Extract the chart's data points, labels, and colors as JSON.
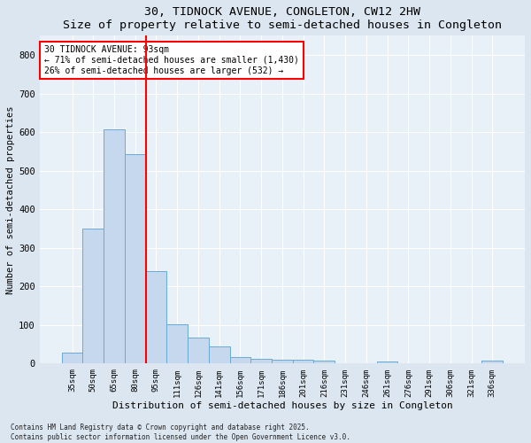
{
  "title": "30, TIDNOCK AVENUE, CONGLETON, CW12 2HW",
  "subtitle": "Size of property relative to semi-detached houses in Congleton",
  "xlabel": "Distribution of semi-detached houses by size in Congleton",
  "ylabel": "Number of semi-detached properties",
  "categories": [
    "35sqm",
    "50sqm",
    "65sqm",
    "80sqm",
    "95sqm",
    "111sqm",
    "126sqm",
    "141sqm",
    "156sqm",
    "171sqm",
    "186sqm",
    "201sqm",
    "216sqm",
    "231sqm",
    "246sqm",
    "261sqm",
    "276sqm",
    "291sqm",
    "306sqm",
    "321sqm",
    "336sqm"
  ],
  "values": [
    28,
    350,
    608,
    543,
    240,
    103,
    67,
    45,
    18,
    13,
    10,
    10,
    8,
    0,
    0,
    5,
    0,
    0,
    0,
    0,
    8
  ],
  "bar_color": "#c5d8ee",
  "bar_edge_color": "#6aaad4",
  "red_line_index": 4,
  "annotation_title": "30 TIDNOCK AVENUE: 93sqm",
  "annotation_line1": "← 71% of semi-detached houses are smaller (1,430)",
  "annotation_line2": "26% of semi-detached houses are larger (532) →",
  "ylim": [
    0,
    850
  ],
  "yticks": [
    0,
    100,
    200,
    300,
    400,
    500,
    600,
    700,
    800
  ],
  "footer_line1": "Contains HM Land Registry data © Crown copyright and database right 2025.",
  "footer_line2": "Contains public sector information licensed under the Open Government Licence v3.0.",
  "background_color": "#dce6f0",
  "plot_background_color": "#e8f0f8"
}
